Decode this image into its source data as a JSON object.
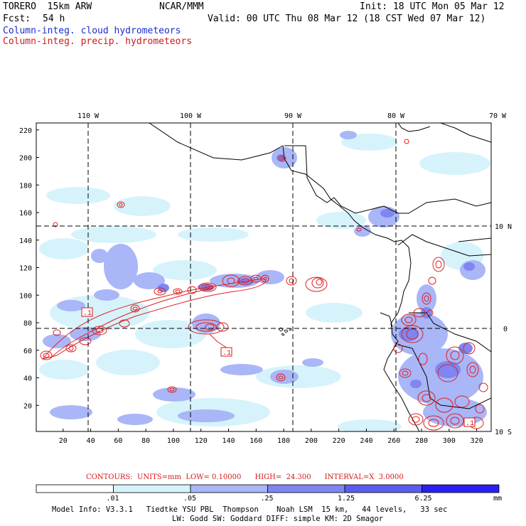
{
  "header": {
    "model": "TORERO  15km ARW",
    "org": "NCAR/MMM",
    "init": "Init: 18 UTC Mon 05 Mar 12",
    "fcst_label": "Fcst:",
    "fcst_value": "54 h",
    "valid": "Valid: 00 UTC Thu 08 Mar 12 (18 CST Wed 07 Mar 12)",
    "field1": "Column-integ. cloud hydrometeors",
    "field2": "Column-integ. precip. hydrometeors"
  },
  "map": {
    "lon_labels": [
      "110 W",
      "100 W",
      "90 W",
      "80 W",
      "70 W"
    ],
    "lat_labels": [
      "10 N",
      "0",
      "10 S"
    ],
    "x_ticks": [
      "20",
      "40",
      "60",
      "80",
      "100",
      "120",
      "140",
      "160",
      "180",
      "200",
      "220",
      "240",
      "260",
      "280",
      "300",
      "320"
    ],
    "y_ticks": [
      "20",
      "40",
      "60",
      "80",
      "100",
      "120",
      "140",
      "160",
      "180",
      "200",
      "220"
    ],
    "box_labels": [
      ".1",
      ".1",
      ".1"
    ]
  },
  "caption": {
    "contours": "CONTOURS:  UNITS=mm  LOW= 0.10000      HIGH=  24.300      INTERVAL=X  3.0000"
  },
  "colorbar": {
    "levels": [
      ".01",
      ".05",
      ".25",
      "1.25",
      "6.25"
    ],
    "unit": "mm",
    "colors": [
      "#ffffff",
      "#d6f3fb",
      "#a9b6f7",
      "#7f86f2",
      "#5b5cef",
      "#2a1ff0"
    ]
  },
  "footer": {
    "line1": "Model Info: V3.3.1   Tiedtke YSU PBL  Thompson    Noah LSM  15 km,   44 levels,   33 sec",
    "line2": "LW: Godd SW: Goddard DIFF: simple KM: 2D Smagor"
  },
  "colors": {
    "cloud_light": "#d6f3fb",
    "cloud_mid": "#a9b6f7",
    "cloud_dark": "#7f86f2",
    "precip_contour": "#e02020"
  }
}
